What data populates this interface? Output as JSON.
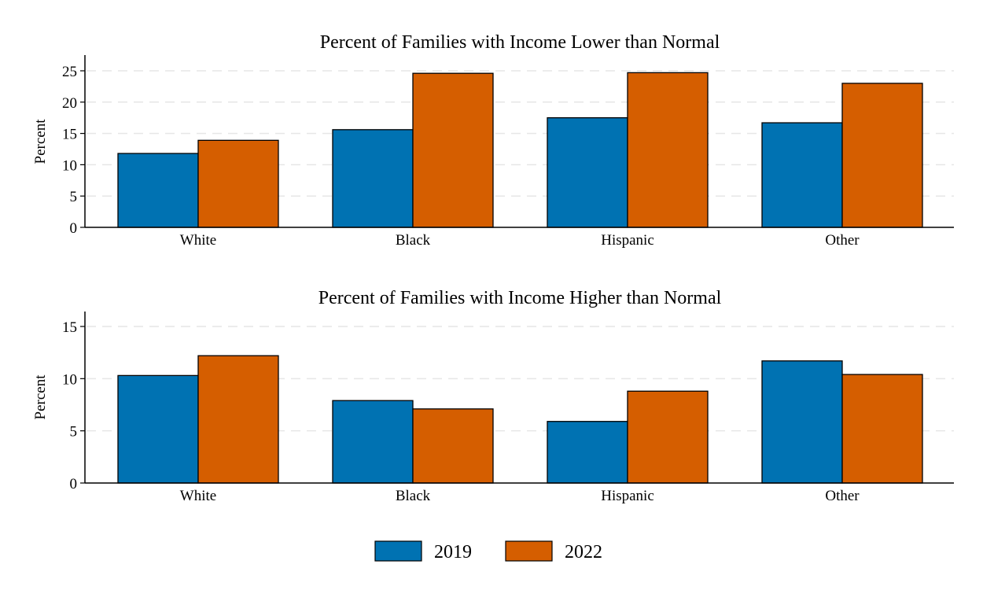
{
  "chart_data": [
    {
      "type": "bar",
      "title": "Percent of Families with Income Lower than Normal",
      "xlabel": "",
      "ylabel": "Percent",
      "categories": [
        "White",
        "Black",
        "Hispanic",
        "Other"
      ],
      "ylim": [
        0,
        27.5
      ],
      "yticks": [
        0,
        5,
        10,
        15,
        20,
        25
      ],
      "grid": true,
      "series": [
        {
          "name": "2019",
          "values": [
            11.8,
            15.6,
            17.5,
            16.7
          ]
        },
        {
          "name": "2022",
          "values": [
            13.9,
            24.6,
            24.7,
            23.0
          ]
        }
      ]
    },
    {
      "type": "bar",
      "title": "Percent of Families with Income Higher than Normal",
      "xlabel": "",
      "ylabel": "Percent",
      "categories": [
        "White",
        "Black",
        "Hispanic",
        "Other"
      ],
      "ylim": [
        0,
        16.5
      ],
      "yticks": [
        0,
        5,
        10,
        15
      ],
      "grid": true,
      "series": [
        {
          "name": "2019",
          "values": [
            10.3,
            7.9,
            5.9,
            11.7
          ]
        },
        {
          "name": "2022",
          "values": [
            12.2,
            7.1,
            8.8,
            10.4
          ]
        }
      ]
    }
  ],
  "legend": {
    "placement": "bottom",
    "items": [
      {
        "label": "2019",
        "color": "#0072b2"
      },
      {
        "label": "2022",
        "color": "#d55e00"
      }
    ]
  },
  "colors": {
    "2019": "#0072b2",
    "2022": "#d55e00",
    "grid": "#e6e6e6"
  }
}
